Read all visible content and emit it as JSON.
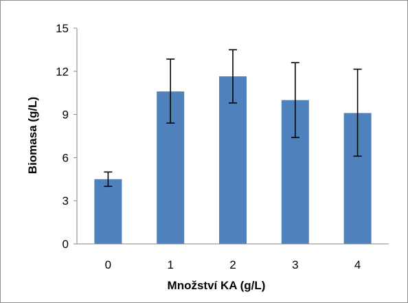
{
  "chart_data": {
    "type": "bar",
    "categories": [
      "0",
      "1",
      "2",
      "3",
      "4"
    ],
    "values": [
      4.5,
      10.6,
      11.65,
      10.0,
      9.1
    ],
    "error_bars": {
      "low": [
        4.0,
        8.4,
        9.8,
        7.4,
        6.1
      ],
      "high": [
        5.0,
        12.85,
        13.5,
        12.6,
        12.15
      ]
    },
    "xlabel": "Množství KA (g/L)",
    "ylabel": "Biomasa (g/L)",
    "ylim": [
      0,
      15
    ],
    "yticks": [
      0,
      3,
      6,
      9,
      12,
      15
    ],
    "grid": false,
    "legend": "none",
    "bar_color": "#4f81bd"
  }
}
